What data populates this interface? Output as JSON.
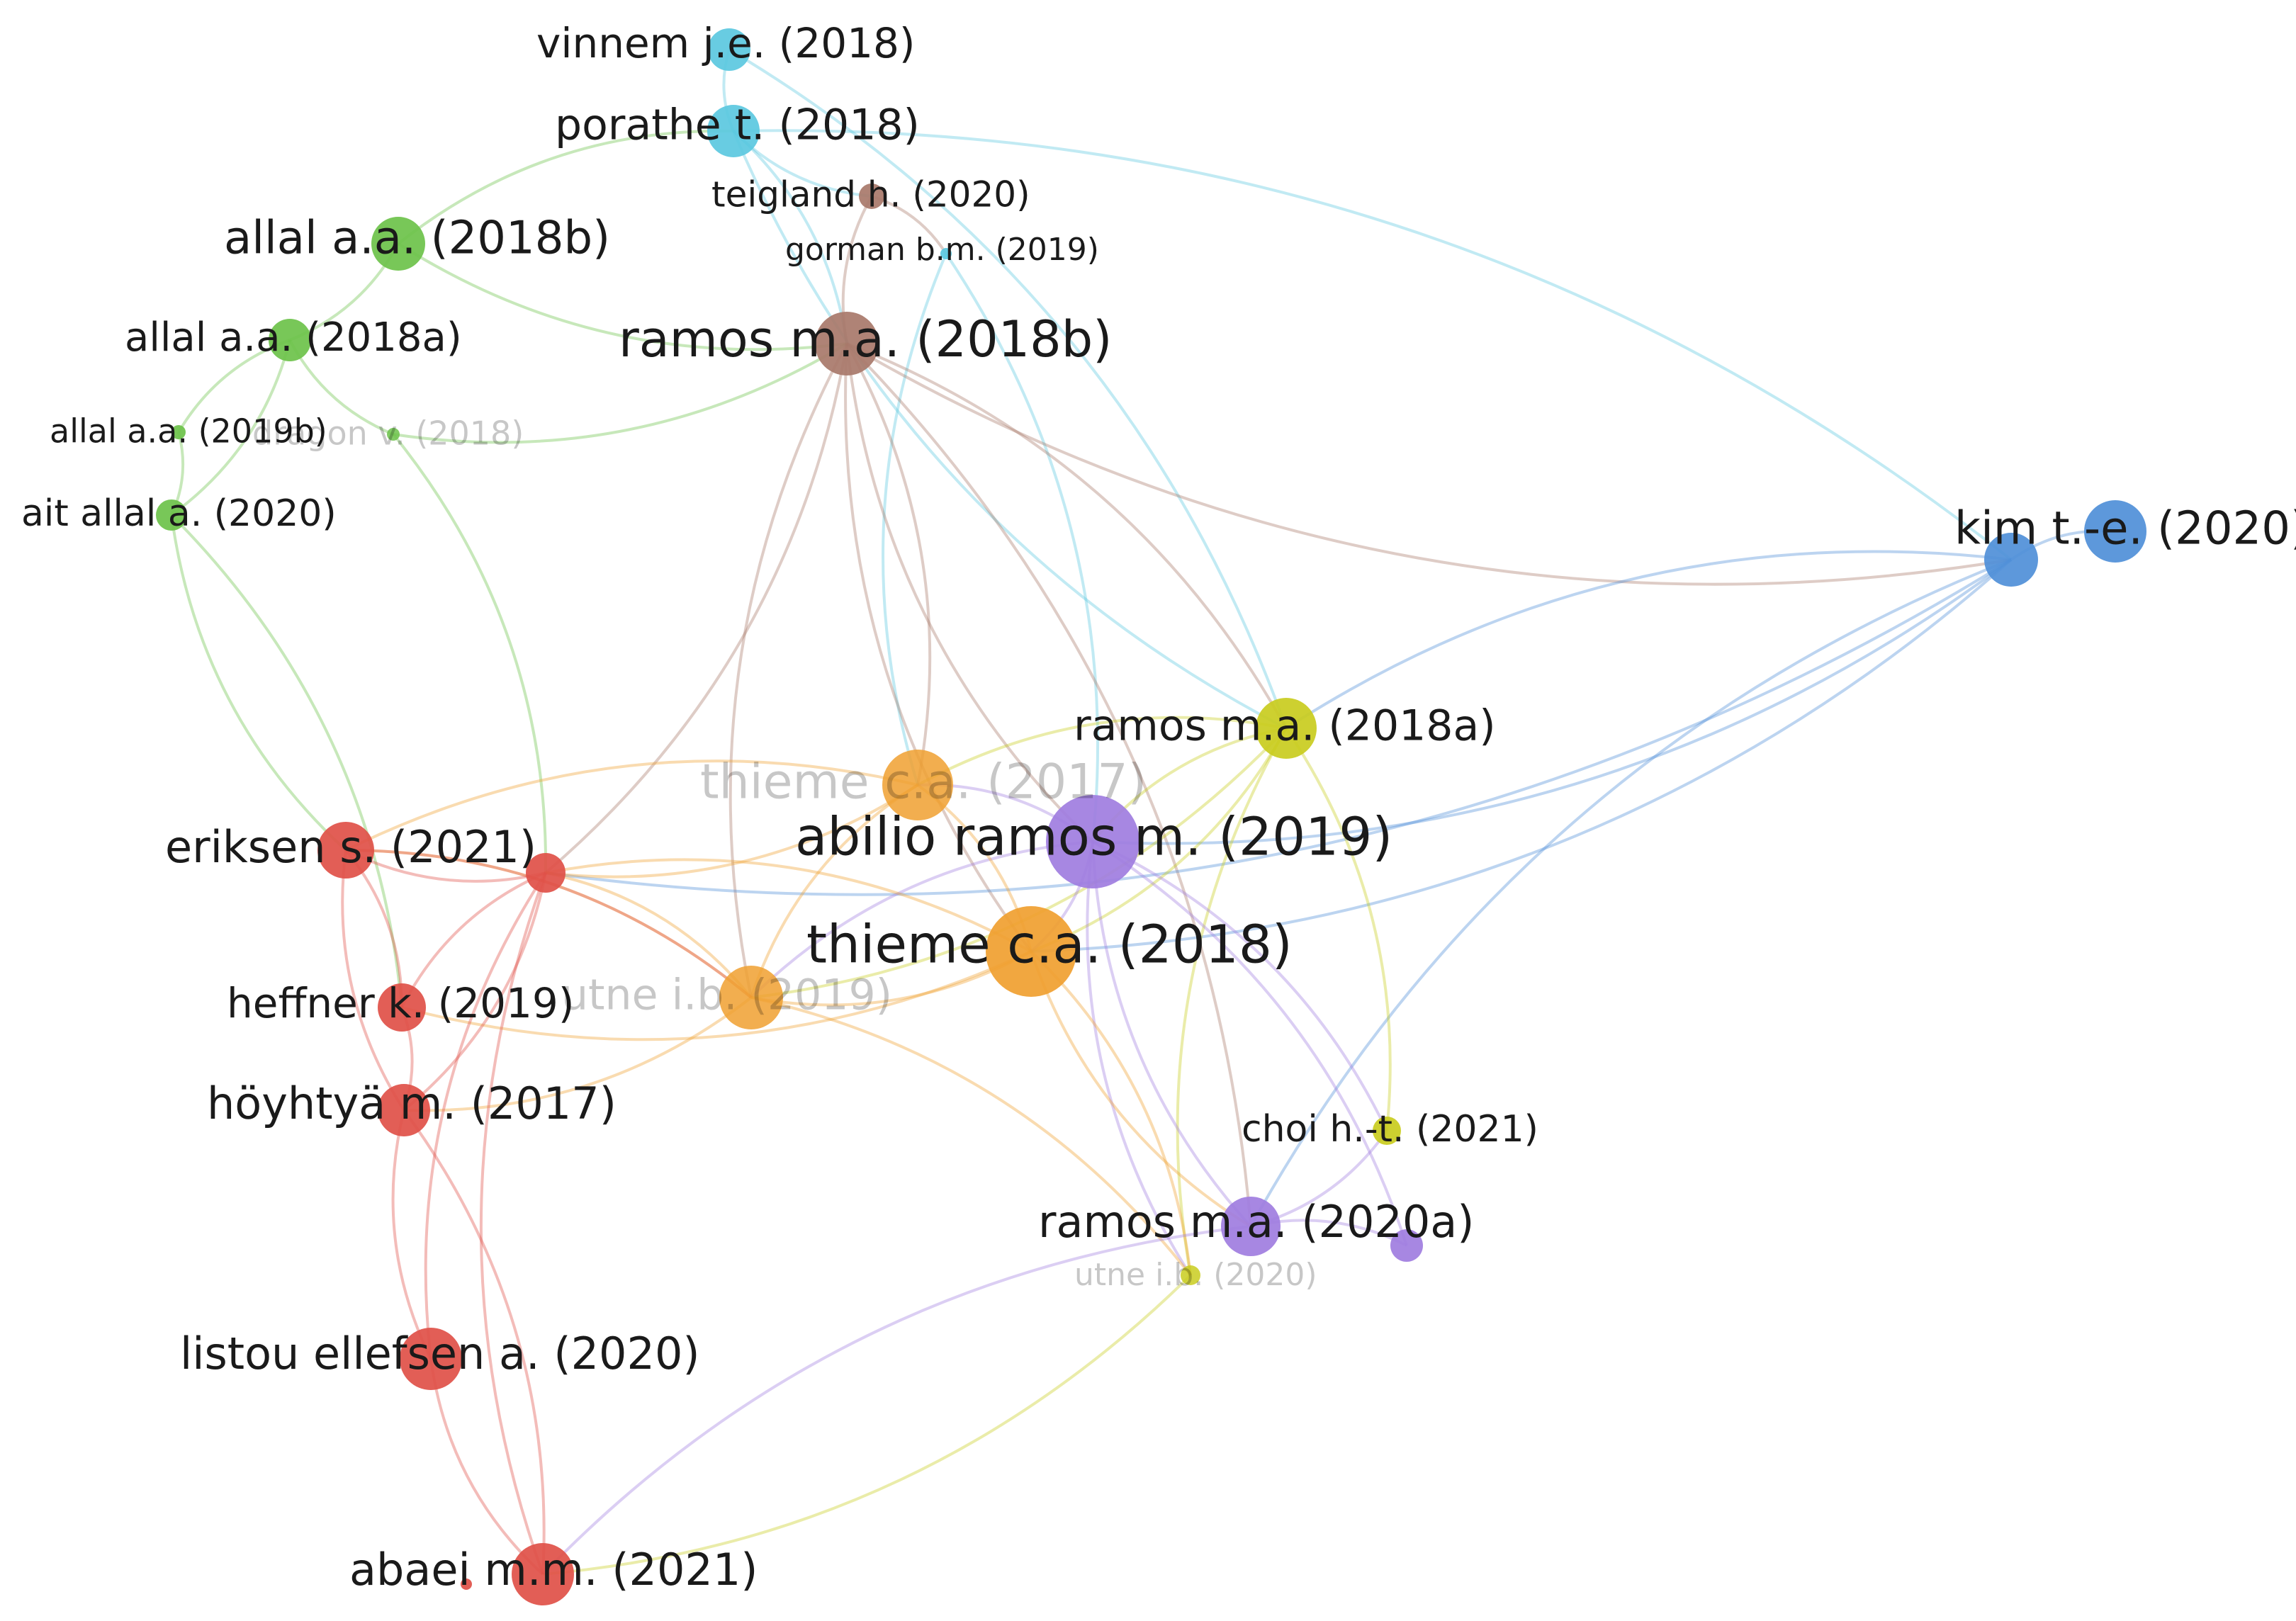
{
  "diagram": {
    "type": "co-citation network",
    "colors": {
      "green": "#6cc24a",
      "cyan": "#5bc8e0",
      "brown": "#a8786a",
      "blue": "#4f8fd8",
      "yellow": "#c9cc1e",
      "orange": "#f0a030",
      "purple": "#a07de0",
      "red": "#df5048"
    },
    "nodes": [
      {
        "id": "vinnem",
        "label": "vinnem j.e. (2018)",
        "cluster": "cyan"
      },
      {
        "id": "porathe",
        "label": "porathe t. (2018)",
        "cluster": "cyan"
      },
      {
        "id": "teigland",
        "label": "teigland h. (2020)",
        "cluster": "brown"
      },
      {
        "id": "gorman",
        "label": "gorman b.m. (2019)",
        "cluster": "cyan"
      },
      {
        "id": "allal18b",
        "label": "allal a.a. (2018b)",
        "cluster": "green"
      },
      {
        "id": "allal18a",
        "label": "allal a.a. (2018a)",
        "cluster": "green"
      },
      {
        "id": "ramos18b",
        "label": "ramos m.a. (2018b)",
        "cluster": "brown"
      },
      {
        "id": "allal19b",
        "label": "allal a.a. (2019b)",
        "cluster": "green"
      },
      {
        "id": "dragon",
        "label": "dragon v. (2018)",
        "cluster": "green",
        "faded": true
      },
      {
        "id": "aitallal",
        "label": "ait allal a. (2020)",
        "cluster": "green"
      },
      {
        "id": "kim",
        "label": "kim t.-e. (2020)",
        "cluster": "blue"
      },
      {
        "id": "ramos18a",
        "label": "ramos m.a. (2018a)",
        "cluster": "yellow"
      },
      {
        "id": "thieme17",
        "label": "thieme c.a. (2017)",
        "cluster": "orange",
        "faded": true
      },
      {
        "id": "abilio",
        "label": "abilio ramos m. (2019)",
        "cluster": "purple"
      },
      {
        "id": "eriksen",
        "label": "eriksen s. (2021)",
        "cluster": "red"
      },
      {
        "id": "thieme18",
        "label": "thieme c.a. (2018)",
        "cluster": "orange"
      },
      {
        "id": "heffner",
        "label": "heffner k. (2019)",
        "cluster": "red"
      },
      {
        "id": "utne19",
        "label": "utne i.b. (2019)",
        "cluster": "orange",
        "faded": true
      },
      {
        "id": "hoyhtya",
        "label": "höyhtyä m. (2017)",
        "cluster": "red"
      },
      {
        "id": "choi",
        "label": "choi h.-t. (2021)",
        "cluster": "yellow"
      },
      {
        "id": "ramos20a",
        "label": "ramos m.a. (2020a)",
        "cluster": "purple"
      },
      {
        "id": "utne20",
        "label": "utne i.b. (2020)",
        "cluster": "yellow",
        "faded": true
      },
      {
        "id": "listou",
        "label": "listou ellefsen a. (2020)",
        "cluster": "red"
      },
      {
        "id": "abaei",
        "label": "abaei m.m. (2021)",
        "cluster": "red"
      },
      {
        "id": "kim2",
        "label": "",
        "cluster": "blue"
      },
      {
        "id": "red_small",
        "label": "",
        "cluster": "red"
      },
      {
        "id": "purple_small",
        "label": "",
        "cluster": "purple"
      },
      {
        "id": "red_tiny",
        "label": "",
        "cluster": "red"
      }
    ],
    "edges": [
      [
        "allal18b",
        "porathe"
      ],
      [
        "allal18b",
        "ramos18b"
      ],
      [
        "allal18b",
        "allal18a"
      ],
      [
        "allal18a",
        "allal19b"
      ],
      [
        "allal18a",
        "aitallal"
      ],
      [
        "allal18a",
        "dragon"
      ],
      [
        "allal19b",
        "aitallal"
      ],
      [
        "dragon",
        "ramos18b"
      ],
      [
        "dragon",
        "red_small"
      ],
      [
        "aitallal",
        "eriksen"
      ],
      [
        "aitallal",
        "heffner"
      ],
      [
        "vinnem",
        "porathe"
      ],
      [
        "vinnem",
        "ramos18a"
      ],
      [
        "porathe",
        "ramos18a"
      ],
      [
        "porathe",
        "kim2"
      ],
      [
        "porathe",
        "teigland"
      ],
      [
        "porathe",
        "ramos18b"
      ],
      [
        "gorman",
        "thieme17"
      ],
      [
        "gorman",
        "abilio"
      ],
      [
        "teigland",
        "ramos18b"
      ],
      [
        "teigland",
        "gorman"
      ],
      [
        "ramos18b",
        "kim2"
      ],
      [
        "ramos18b",
        "ramos18a"
      ],
      [
        "ramos18b",
        "abilio"
      ],
      [
        "ramos18b",
        "thieme17"
      ],
      [
        "ramos18b",
        "thieme18"
      ],
      [
        "ramos18b",
        "red_small"
      ],
      [
        "ramos18b",
        "utne19"
      ],
      [
        "ramos18b",
        "ramos20a"
      ],
      [
        "kim",
        "kim2"
      ],
      [
        "kim2",
        "abilio"
      ],
      [
        "kim2",
        "ramos18a"
      ],
      [
        "kim2",
        "red_small"
      ],
      [
        "kim2",
        "ramos20a"
      ],
      [
        "kim2",
        "thieme18"
      ],
      [
        "ramos18a",
        "abilio"
      ],
      [
        "ramos18a",
        "thieme18"
      ],
      [
        "ramos18a",
        "thieme17"
      ],
      [
        "ramos18a",
        "choi"
      ],
      [
        "ramos18a",
        "utne20"
      ],
      [
        "ramos18a",
        "utne19"
      ],
      [
        "abilio",
        "thieme17"
      ],
      [
        "abilio",
        "thieme18"
      ],
      [
        "abilio",
        "ramos20a"
      ],
      [
        "abilio",
        "purple_small"
      ],
      [
        "abilio",
        "utne19"
      ],
      [
        "abilio",
        "choi"
      ],
      [
        "abilio",
        "utne20"
      ],
      [
        "thieme17",
        "thieme18"
      ],
      [
        "thieme17",
        "utne19"
      ],
      [
        "thieme17",
        "red_small"
      ],
      [
        "thieme17",
        "eriksen"
      ],
      [
        "thieme18",
        "utne19"
      ],
      [
        "thieme18",
        "ramos20a"
      ],
      [
        "thieme18",
        "utne20"
      ],
      [
        "thieme18",
        "red_small"
      ],
      [
        "thieme18",
        "heffner"
      ],
      [
        "utne19",
        "red_small"
      ],
      [
        "utne19",
        "utne20"
      ],
      [
        "utne19",
        "eriksen"
      ],
      [
        "utne19",
        "hoyhtya"
      ],
      [
        "ramos20a",
        "abaei"
      ],
      [
        "utne20",
        "abaei"
      ],
      [
        "ramos20a",
        "choi"
      ],
      [
        "ramos20a",
        "purple_small"
      ],
      [
        "eriksen",
        "red_small"
      ],
      [
        "eriksen",
        "heffner"
      ],
      [
        "eriksen",
        "hoyhtya"
      ],
      [
        "eriksen",
        "utne19"
      ],
      [
        "red_small",
        "heffner"
      ],
      [
        "red_small",
        "hoyhtya"
      ],
      [
        "red_small",
        "listou"
      ],
      [
        "heffner",
        "hoyhtya"
      ],
      [
        "hoyhtya",
        "listou"
      ],
      [
        "hoyhtya",
        "abaei"
      ],
      [
        "listou",
        "abaei"
      ],
      [
        "abaei",
        "red_small"
      ]
    ]
  }
}
